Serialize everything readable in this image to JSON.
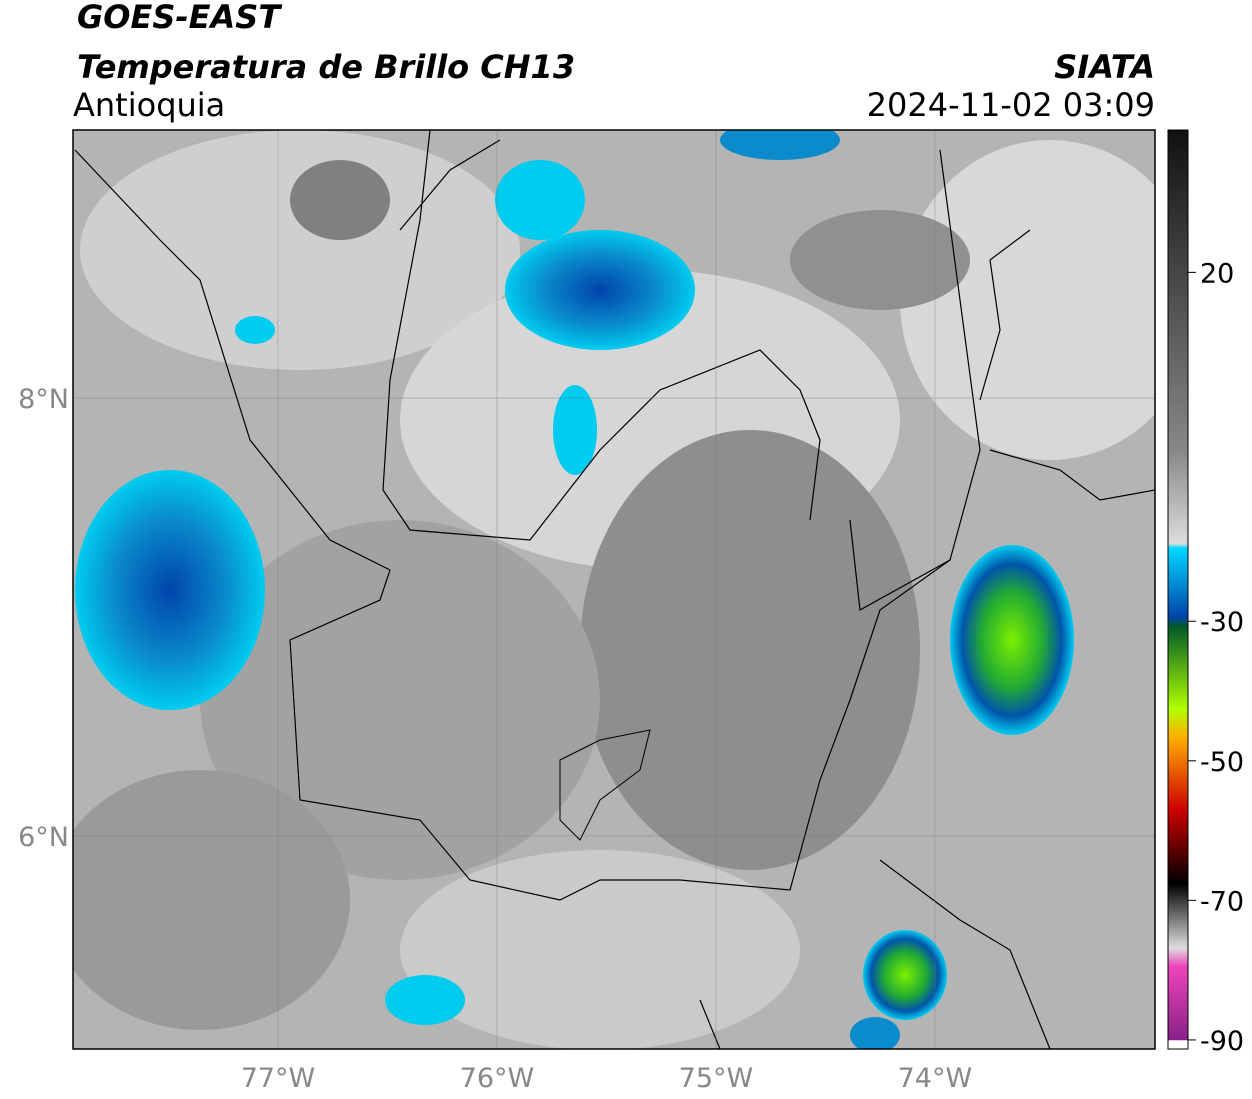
{
  "header": {
    "title": "GOES-EAST",
    "subtitle": "Temperatura de Brillo CH13",
    "region": "Antioquia",
    "source": "SIATA",
    "datetime": "2024-11-02 03:09"
  },
  "map": {
    "xlim": [
      -77.936,
      -72.995
    ],
    "ylim": [
      5.027,
      9.224
    ],
    "xticks": [
      {
        "value": -77,
        "label": "77°W"
      },
      {
        "value": -76,
        "label": "76°W"
      },
      {
        "value": -75,
        "label": "75°W"
      },
      {
        "value": -74,
        "label": "74°W"
      }
    ],
    "yticks": [
      {
        "value": 8,
        "label": "8°N"
      },
      {
        "value": 6,
        "label": "6°N"
      }
    ]
  },
  "colorbar": {
    "lim": [
      40.4,
      -91.3
    ],
    "ticks": [
      20,
      -30,
      -50,
      -70,
      -90
    ]
  }
}
